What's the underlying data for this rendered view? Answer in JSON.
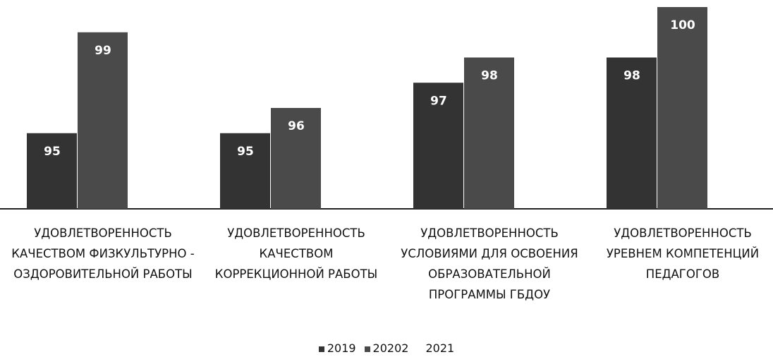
{
  "chart_data": {
    "type": "bar",
    "categories": [
      "УДОВЛЕТВОРЕННОСТЬ КАЧЕСТВОМ ФИЗКУЛЬТУРНО - ОЗДОРОВИТЕЛЬНОЙ РАБОТЫ",
      "УДОВЛЕТВОРЕННОСТЬ КАЧЕСТВОМ КОРРЕКЦИОННОЙ РАБОТЫ",
      "УДОВЛЕТВОРЕННОСТЬ УСЛОВИЯМИ ДЛЯ ОСВОЕНИЯ ОБРАЗОВАТЕЛЬНОЙ ПРОГРАММЫ ГБДОУ",
      "УДОВЛЕТВОРЕННОСТЬ УРЕВНЕМ КОМПЕТЕНЦИЙ ПЕДАГОГОВ"
    ],
    "series": [
      {
        "name": "2019",
        "color": "#333333",
        "values": [
          95,
          95,
          97,
          98
        ]
      },
      {
        "name": "20202",
        "color": "#4a4a4a",
        "values": [
          99,
          96,
          98,
          100
        ]
      },
      {
        "name": "2021",
        "color": "#ffffff",
        "values": [
          null,
          null,
          null,
          null
        ]
      }
    ],
    "ylim": [
      92,
      100
    ],
    "legend": "bottom"
  }
}
